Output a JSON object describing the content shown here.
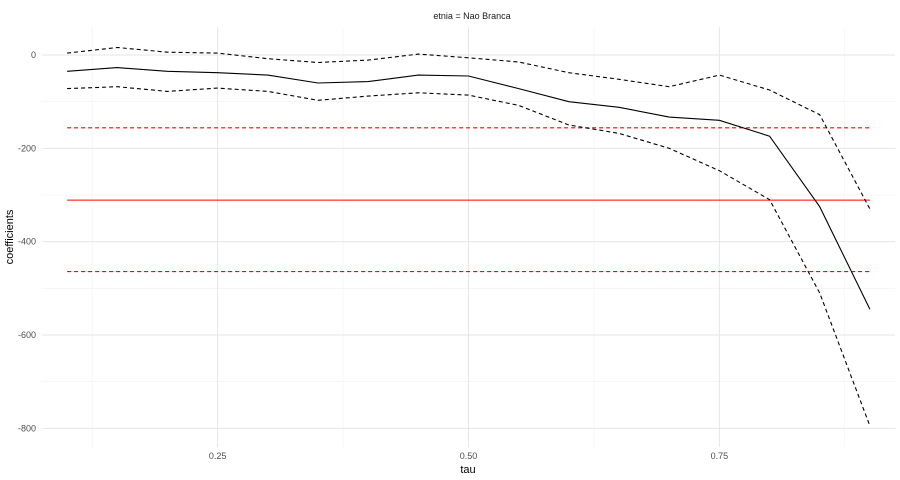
{
  "chart_data": {
    "type": "line",
    "facet_label": "etnia = Nao Branca",
    "xlabel": "tau",
    "ylabel": "coefficients",
    "xlim": [
      0.075,
      0.925
    ],
    "ylim": [
      -840,
      60
    ],
    "x_ticks": [
      0.25,
      0.5,
      0.75
    ],
    "x_tick_labels": [
      "0.25",
      "0.50",
      "0.75"
    ],
    "x_minor": [
      0.125,
      0.375,
      0.625,
      0.875
    ],
    "y_ticks": [
      0,
      -200,
      -400,
      -600,
      -800
    ],
    "y_tick_labels": [
      "0",
      "-200",
      "-400",
      "-600",
      "-800"
    ],
    "y_minor": [
      -100,
      -300,
      -500,
      -700
    ],
    "grid": true,
    "x": [
      0.1,
      0.15,
      0.2,
      0.25,
      0.3,
      0.35,
      0.4,
      0.45,
      0.5,
      0.55,
      0.6,
      0.65,
      0.7,
      0.75,
      0.8,
      0.85,
      0.9
    ],
    "series": [
      {
        "role": "quantile-estimate",
        "color": "#000000",
        "dashed": false,
        "values": [
          -35,
          -27,
          -35,
          -38,
          -43,
          -60,
          -57,
          -43,
          -45,
          -72,
          -100,
          -112,
          -133,
          -140,
          -174,
          -325,
          -545
        ]
      },
      {
        "role": "quantile-upper-bound",
        "color": "#000000",
        "dashed": true,
        "values": [
          4,
          16,
          6,
          4,
          -8,
          -16,
          -11,
          2,
          -6,
          -15,
          -38,
          -52,
          -68,
          -43,
          -75,
          -128,
          -330
        ]
      },
      {
        "role": "quantile-lower-bound",
        "color": "#000000",
        "dashed": true,
        "values": [
          -72,
          -68,
          -78,
          -71,
          -78,
          -97,
          -88,
          -81,
          -86,
          -108,
          -150,
          -168,
          -200,
          -248,
          -310,
          -510,
          -795
        ]
      }
    ],
    "hlines": [
      {
        "role": "ols-estimate",
        "value": -311,
        "color": "#ff0000",
        "dashed": false
      },
      {
        "role": "ols-upper-bound",
        "value": -156,
        "color": "#ff0000",
        "dashed": true
      },
      {
        "role": "ols-lower-bound",
        "value": -464,
        "color": "#ff0000",
        "dashed": true
      }
    ]
  }
}
